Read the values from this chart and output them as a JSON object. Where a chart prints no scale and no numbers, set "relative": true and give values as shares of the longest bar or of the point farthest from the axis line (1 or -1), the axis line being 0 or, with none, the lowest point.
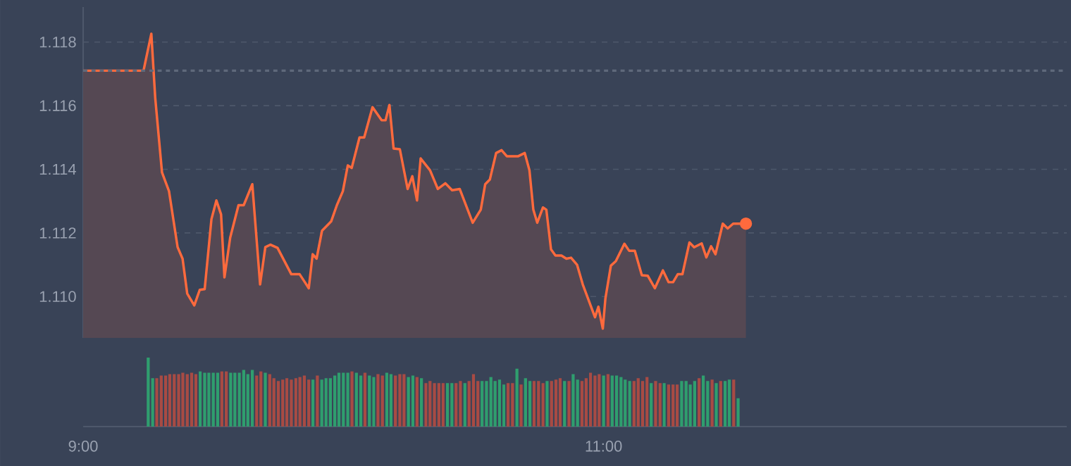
{
  "chart_data": [
    {
      "type": "area",
      "color": "#ff6a3d",
      "grid": "y",
      "tick_labels": "y",
      "xlim": [
        9,
        12.78
      ],
      "ylim": [
        1.1087,
        1.1191
      ],
      "yticks": [
        {
          "value": 1.11,
          "label": "1.110"
        },
        1.112,
        1.114,
        1.116,
        1.118
      ],
      "ref_lines": [
        {
          "axis": "y",
          "value": 1.1171,
          "line_style": "dotted",
          "color": "#5f697b"
        }
      ],
      "x": [
        9.0,
        9.232,
        9.262,
        9.277,
        9.303,
        9.33,
        9.363,
        9.382,
        9.4,
        9.427,
        9.448,
        9.467,
        9.493,
        9.512,
        9.53,
        9.543,
        9.565,
        9.597,
        9.617,
        9.65,
        9.68,
        9.7,
        9.72,
        9.747,
        9.8,
        9.832,
        9.852,
        9.867,
        9.882,
        9.897,
        9.918,
        9.953,
        9.975,
        9.998,
        10.017,
        10.032,
        10.062,
        10.08,
        10.112,
        10.147,
        10.162,
        10.177,
        10.193,
        10.217,
        10.247,
        10.265,
        10.283,
        10.297,
        10.333,
        10.363,
        10.392,
        10.418,
        10.447,
        10.497,
        10.528,
        10.545,
        10.563,
        10.587,
        10.608,
        10.628,
        10.672,
        10.697,
        10.715,
        10.73,
        10.745,
        10.767,
        10.78,
        10.798,
        10.815,
        10.838,
        10.857,
        10.875,
        10.898,
        10.92,
        10.967,
        10.98,
        10.997,
        11.007,
        11.028,
        11.047,
        11.08,
        11.098,
        11.12,
        11.147,
        11.17,
        11.197,
        11.228,
        11.25,
        11.267,
        11.285,
        11.303,
        11.33,
        11.348,
        11.377,
        11.395,
        11.413,
        11.43,
        11.458,
        11.477,
        11.498,
        11.547
      ],
      "values": [
        1.1171,
        1.1171,
        1.11826,
        1.11624,
        1.1139,
        1.11331,
        1.11155,
        1.11119,
        1.11009,
        1.10972,
        1.11021,
        1.11023,
        1.11243,
        1.11302,
        1.11258,
        1.1106,
        1.11185,
        1.11287,
        1.11287,
        1.11353,
        1.11038,
        1.11155,
        1.11163,
        1.11153,
        1.1107,
        1.1107,
        1.11045,
        1.11026,
        1.11133,
        1.11119,
        1.11207,
        1.11236,
        1.11287,
        1.11331,
        1.11412,
        1.11404,
        1.115,
        1.115,
        1.11595,
        1.11554,
        1.11554,
        1.11602,
        1.11465,
        1.11463,
        1.11338,
        1.11378,
        1.11302,
        1.11434,
        1.11397,
        1.11338,
        1.11356,
        1.11334,
        1.11338,
        1.11232,
        1.11273,
        1.11353,
        1.11368,
        1.11451,
        1.1146,
        1.11441,
        1.11441,
        1.11451,
        1.11397,
        1.11273,
        1.11232,
        1.1128,
        1.11273,
        1.11148,
        1.11129,
        1.11129,
        1.11119,
        1.11122,
        1.111,
        1.11038,
        1.10935,
        1.10968,
        1.10899,
        1.10994,
        1.11097,
        1.11111,
        1.11166,
        1.11144,
        1.11144,
        1.11067,
        1.11065,
        1.11026,
        1.11082,
        1.11045,
        1.11045,
        1.1107,
        1.1107,
        1.1117,
        1.11155,
        1.11167,
        1.11123,
        1.11158,
        1.11133,
        1.11229,
        1.11214,
        1.11229,
        1.11229
      ]
    },
    {
      "type": "bar",
      "relative": true,
      "tick_labels": "x",
      "xlim": [
        9,
        12.78
      ],
      "xticks": [
        {
          "value": 9,
          "label": "9:00"
        },
        {
          "value": 11,
          "label": "11:00"
        }
      ],
      "x": [
        9.25,
        9.267,
        9.283,
        9.3,
        9.317,
        9.333,
        9.35,
        9.367,
        9.383,
        9.4,
        9.417,
        9.433,
        9.45,
        9.467,
        9.483,
        9.5,
        9.517,
        9.533,
        9.55,
        9.567,
        9.583,
        9.6,
        9.617,
        9.633,
        9.65,
        9.667,
        9.683,
        9.7,
        9.717,
        9.733,
        9.75,
        9.767,
        9.783,
        9.8,
        9.817,
        9.833,
        9.85,
        9.867,
        9.883,
        9.9,
        9.917,
        9.933,
        9.95,
        9.967,
        9.983,
        10.0,
        10.017,
        10.033,
        10.05,
        10.067,
        10.083,
        10.1,
        10.117,
        10.133,
        10.15,
        10.167,
        10.183,
        10.2,
        10.217,
        10.233,
        10.25,
        10.267,
        10.283,
        10.3,
        10.317,
        10.333,
        10.35,
        10.367,
        10.383,
        10.4,
        10.417,
        10.433,
        10.45,
        10.467,
        10.483,
        10.5,
        10.517,
        10.533,
        10.55,
        10.567,
        10.583,
        10.6,
        10.617,
        10.633,
        10.65,
        10.667,
        10.683,
        10.7,
        10.717,
        10.733,
        10.75,
        10.767,
        10.783,
        10.8,
        10.817,
        10.833,
        10.85,
        10.867,
        10.883,
        10.9,
        10.917,
        10.933,
        10.95,
        10.967,
        10.983,
        11.0,
        11.017,
        11.033,
        11.05,
        11.067,
        11.083,
        11.1,
        11.117,
        11.133,
        11.15,
        11.167,
        11.183,
        11.2,
        11.217,
        11.233,
        11.25,
        11.267,
        11.283,
        11.3,
        11.317,
        11.333,
        11.35,
        11.367,
        11.383,
        11.4,
        11.417,
        11.433,
        11.45,
        11.467,
        11.483,
        11.5,
        11.517
      ],
      "values": [
        1.0,
        0.7,
        0.7,
        0.74,
        0.74,
        0.76,
        0.76,
        0.76,
        0.78,
        0.76,
        0.78,
        0.76,
        0.8,
        0.78,
        0.78,
        0.78,
        0.78,
        0.8,
        0.8,
        0.78,
        0.78,
        0.78,
        0.82,
        0.76,
        0.82,
        0.74,
        0.8,
        0.78,
        0.76,
        0.7,
        0.66,
        0.68,
        0.7,
        0.68,
        0.7,
        0.72,
        0.74,
        0.68,
        0.68,
        0.74,
        0.68,
        0.7,
        0.7,
        0.74,
        0.78,
        0.78,
        0.78,
        0.8,
        0.78,
        0.74,
        0.78,
        0.74,
        0.72,
        0.76,
        0.74,
        0.78,
        0.76,
        0.74,
        0.76,
        0.76,
        0.72,
        0.74,
        0.72,
        0.7,
        0.63,
        0.66,
        0.63,
        0.63,
        0.63,
        0.63,
        0.63,
        0.63,
        0.66,
        0.63,
        0.66,
        0.76,
        0.66,
        0.66,
        0.66,
        0.72,
        0.66,
        0.68,
        0.61,
        0.63,
        0.63,
        0.84,
        0.61,
        0.7,
        0.66,
        0.66,
        0.66,
        0.63,
        0.66,
        0.66,
        0.68,
        0.7,
        0.66,
        0.66,
        0.76,
        0.68,
        0.66,
        0.7,
        0.78,
        0.74,
        0.76,
        0.74,
        0.76,
        0.74,
        0.74,
        0.72,
        0.68,
        0.66,
        0.66,
        0.7,
        0.66,
        0.72,
        0.63,
        0.66,
        0.63,
        0.63,
        0.61,
        0.61,
        0.61,
        0.66,
        0.66,
        0.61,
        0.66,
        0.7,
        0.74,
        0.66,
        0.68,
        0.63,
        0.66,
        0.66,
        0.68,
        0.68,
        0.41
      ],
      "colors": [
        "#2f9e6e",
        "#2f9e6e",
        "#a84b44",
        "#a84b44",
        "#a84b44",
        "#a84b44",
        "#a84b44",
        "#a84b44",
        "#a84b44",
        "#a84b44",
        "#a84b44",
        "#a84b44",
        "#2f9e6e",
        "#2f9e6e",
        "#2f9e6e",
        "#2f9e6e",
        "#2f9e6e",
        "#a84b44",
        "#a84b44",
        "#2f9e6e",
        "#2f9e6e",
        "#2f9e6e",
        "#2f9e6e",
        "#2f9e6e",
        "#2f9e6e",
        "#a84b44",
        "#a84b44",
        "#2f9e6e",
        "#a84b44",
        "#a84b44",
        "#a84b44",
        "#a84b44",
        "#a84b44",
        "#a84b44",
        "#a84b44",
        "#a84b44",
        "#a84b44",
        "#a84b44",
        "#2f9e6e",
        "#a84b44",
        "#2f9e6e",
        "#2f9e6e",
        "#2f9e6e",
        "#2f9e6e",
        "#2f9e6e",
        "#2f9e6e",
        "#2f9e6e",
        "#a84b44",
        "#2f9e6e",
        "#2f9e6e",
        "#a84b44",
        "#2f9e6e",
        "#2f9e6e",
        "#a84b44",
        "#a84b44",
        "#2f9e6e",
        "#2f9e6e",
        "#a84b44",
        "#a84b44",
        "#a84b44",
        "#2f9e6e",
        "#2f9e6e",
        "#a84b44",
        "#2f9e6e",
        "#a84b44",
        "#a84b44",
        "#a84b44",
        "#a84b44",
        "#a84b44",
        "#2f9e6e",
        "#2f9e6e",
        "#a84b44",
        "#a84b44",
        "#2f9e6e",
        "#a84b44",
        "#a84b44",
        "#a84b44",
        "#2f9e6e",
        "#2f9e6e",
        "#2f9e6e",
        "#2f9e6e",
        "#2f9e6e",
        "#2f9e6e",
        "#a84b44",
        "#a84b44",
        "#2f9e6e",
        "#a84b44",
        "#2f9e6e",
        "#2f9e6e",
        "#a84b44",
        "#a84b44",
        "#a84b44",
        "#2f9e6e",
        "#a84b44",
        "#a84b44",
        "#a84b44",
        "#2f9e6e",
        "#a84b44",
        "#2f9e6e",
        "#2f9e6e",
        "#a84b44",
        "#a84b44",
        "#a84b44",
        "#a84b44",
        "#a84b44",
        "#2f9e6e",
        "#a84b44",
        "#2f9e6e",
        "#2f9e6e",
        "#2f9e6e",
        "#2f9e6e",
        "#2f9e6e",
        "#a84b44",
        "#a84b44",
        "#a84b44",
        "#a84b44",
        "#2f9e6e",
        "#a84b44",
        "#a84b44",
        "#2f9e6e",
        "#a84b44",
        "#a84b44",
        "#a84b44",
        "#2f9e6e",
        "#2f9e6e",
        "#2f9e6e",
        "#2f9e6e",
        "#a84b44",
        "#2f9e6e",
        "#2f9e6e",
        "#a84b44",
        "#2f9e6e",
        "#a84b44",
        "#2f9e6e",
        "#2f9e6e",
        "#a84b44",
        "#2f9e6e"
      ]
    }
  ]
}
